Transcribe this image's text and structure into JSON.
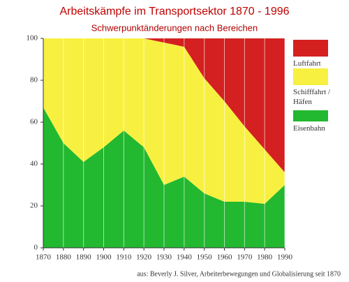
{
  "chart_data": {
    "type": "stacked-area",
    "title": "Arbeitskämpfe im Transportsektor 1870 - 1996",
    "subtitle": "Schwerpunktänderungen nach Bereichen",
    "source": "aus: Beverly J. Silver, Arbeiterbewegungen und Globalisierung seit 1870",
    "x": [
      1870,
      1880,
      1890,
      1900,
      1910,
      1920,
      1930,
      1940,
      1950,
      1960,
      1970,
      1980,
      1990
    ],
    "xlim": [
      1870,
      1990
    ],
    "xticks": [
      1870,
      1880,
      1890,
      1900,
      1910,
      1920,
      1930,
      1940,
      1950,
      1960,
      1970,
      1980,
      1990
    ],
    "ylim": [
      0,
      100
    ],
    "yticks": [
      0,
      20,
      40,
      60,
      80,
      100
    ],
    "grid": true,
    "series": [
      {
        "name": "Eisenbahn",
        "color": "#22b830",
        "values": [
          67,
          50,
          41,
          48,
          56,
          48,
          30,
          34,
          26,
          22,
          22,
          21,
          30
        ]
      },
      {
        "name": "Schifffahrt / Häfen",
        "color": "#f8f040",
        "values": [
          33,
          50,
          59,
          52,
          44,
          52,
          68,
          62,
          55,
          48,
          36,
          26,
          6
        ]
      },
      {
        "name": "Luftfahrt",
        "color": "#d42020",
        "values": [
          0,
          0,
          0,
          0,
          0,
          0,
          2,
          4,
          19,
          30,
          42,
          53,
          64
        ]
      }
    ]
  }
}
